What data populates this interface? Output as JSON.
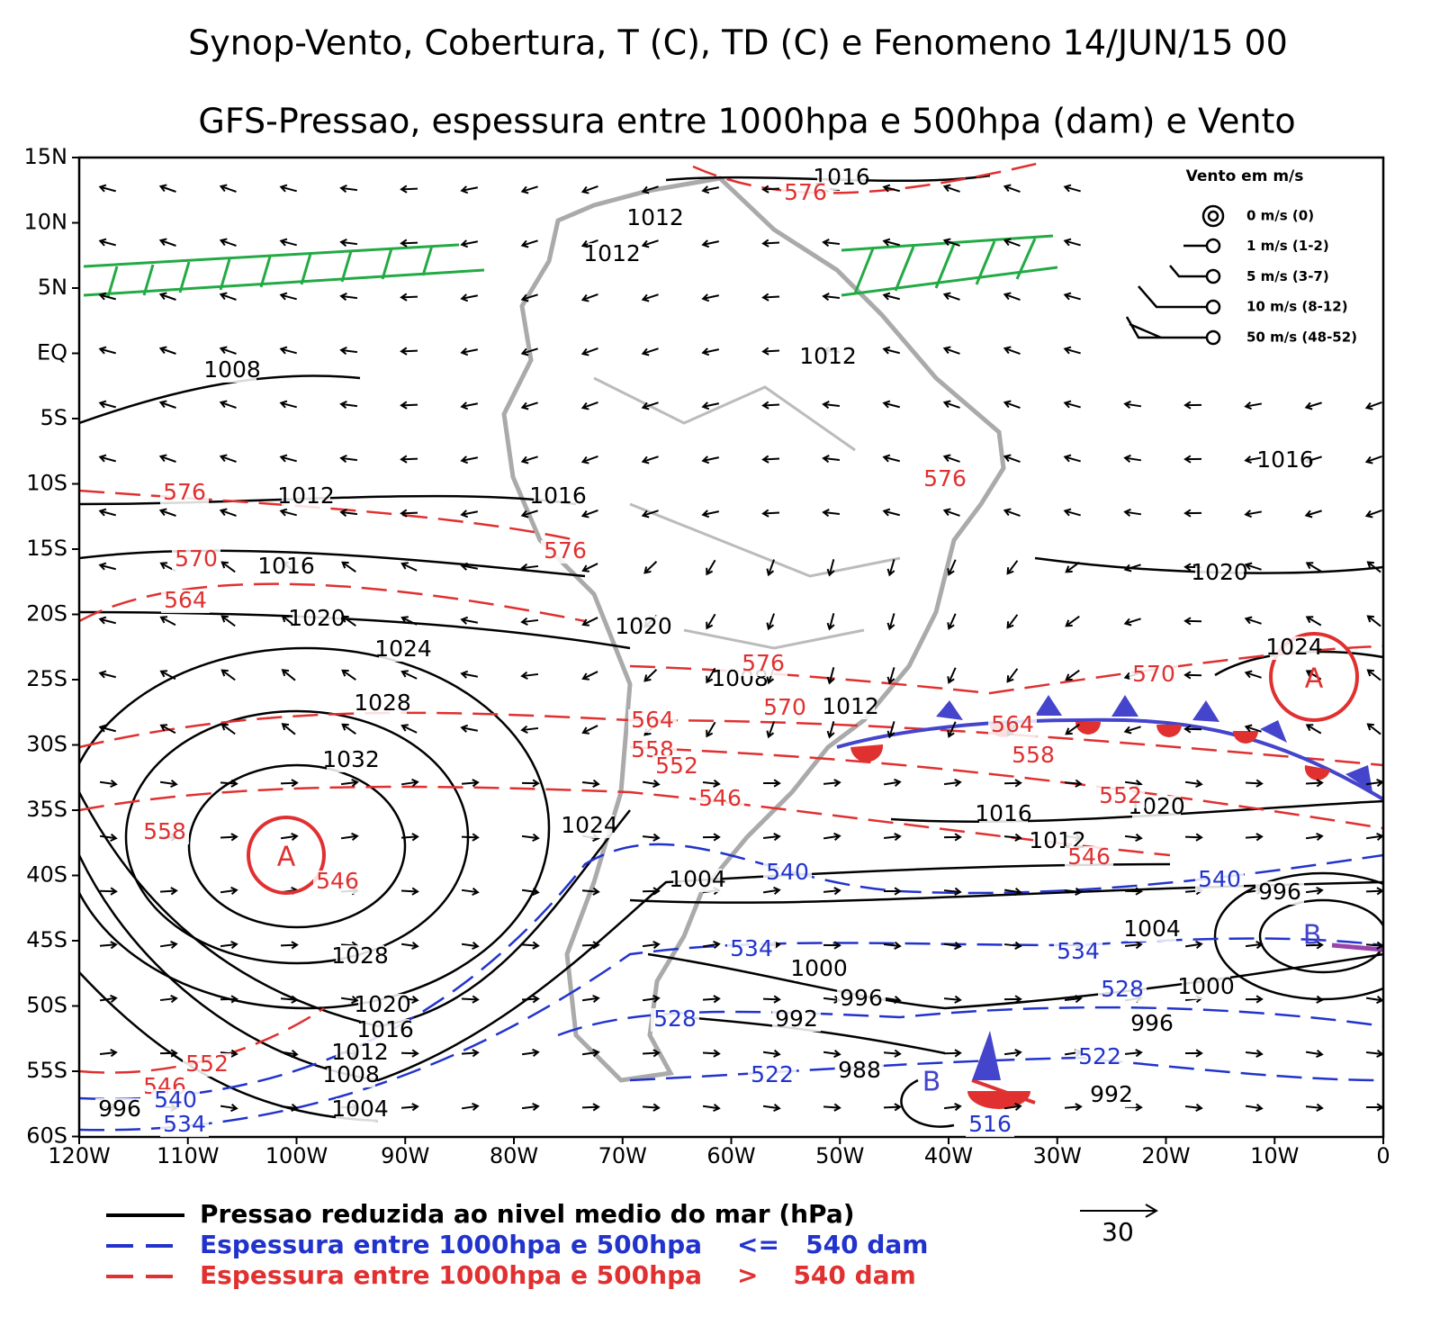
{
  "header": {
    "title": "Synop-Vento, Cobertura, T (C), TD (C) e Fenomeno 14/JUN/15 00",
    "subtitle": "GFS-Pressao, espessura entre 1000hpa e 500hpa (dam) e Vento"
  },
  "map": {
    "lat_labels": [
      "15N",
      "10N",
      "5N",
      "EQ",
      "5S",
      "10S",
      "15S",
      "20S",
      "25S",
      "30S",
      "35S",
      "40S",
      "45S",
      "50S",
      "55S",
      "60S"
    ],
    "lon_labels": [
      "120W",
      "110W",
      "100W",
      "90W",
      "80W",
      "70W",
      "60W",
      "50W",
      "40W",
      "30W",
      "20W",
      "10W",
      "0"
    ],
    "isobar_labels": [
      "1016",
      "1012",
      "1012",
      "1008",
      "1012",
      "1016",
      "1012",
      "1016",
      "1016",
      "1020",
      "1020",
      "1020",
      "1024",
      "1024",
      "1008",
      "1028",
      "1012",
      "1032",
      "1016",
      "1020",
      "1024",
      "1012",
      "1004",
      "996",
      "1004",
      "1028",
      "1000",
      "1000",
      "996",
      "1020",
      "992",
      "996",
      "1016",
      "1012",
      "1008",
      "988",
      "992",
      "1004",
      "996"
    ],
    "thickness_high_labels": [
      "576",
      "576",
      "576",
      "576",
      "570",
      "564",
      "576",
      "570",
      "570",
      "564",
      "564",
      "558",
      "558",
      "552",
      "546",
      "552",
      "558",
      "546",
      "546",
      "552",
      "546"
    ],
    "thickness_low_labels": [
      "540",
      "540",
      "534",
      "534",
      "528",
      "528",
      "522",
      "522",
      "540",
      "534",
      "516"
    ],
    "high_labels": [
      "A",
      "A"
    ],
    "low_labels": [
      "B",
      "B"
    ]
  },
  "wind_legend": {
    "title": "Vento em m/s",
    "entries": [
      "0 m/s (0)",
      "1 m/s (1-2)",
      "5 m/s (3-7)",
      "10 m/s (8-12)",
      "50 m/s (48-52)"
    ]
  },
  "reference_vector": {
    "label": "30"
  },
  "legend": {
    "items": [
      "Pressao reduzida ao nivel medio do mar (hPa)",
      "Espessura entre 1000hpa e 500hpa    <=   540 dam",
      "Espessura entre 1000hpa e 500hpa    >    540 dam"
    ]
  }
}
